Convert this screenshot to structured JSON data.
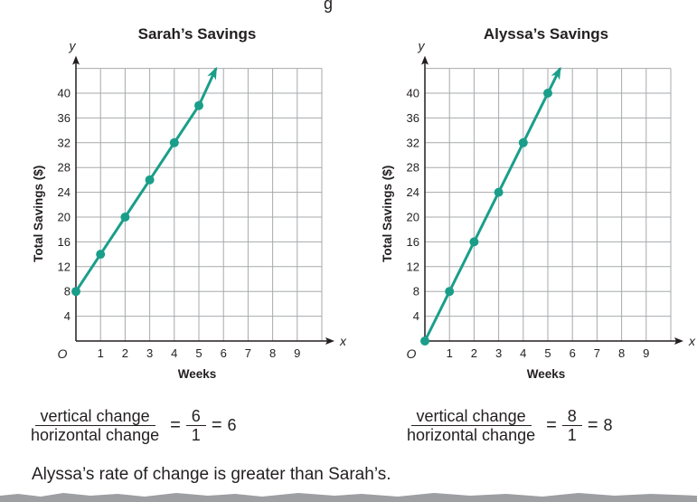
{
  "header_fragment": "g",
  "chart_data": [
    {
      "type": "line",
      "title": "Sarah’s Savings",
      "xlabel": "Weeks",
      "ylabel": "Total Savings ($)",
      "x_axis_letter": "x",
      "y_axis_letter": "y",
      "origin_label": "O",
      "xlim": [
        0,
        10
      ],
      "ylim": [
        0,
        44
      ],
      "x_ticks": [
        1,
        2,
        3,
        4,
        5,
        6,
        7,
        8,
        9
      ],
      "y_ticks": [
        4,
        8,
        12,
        16,
        20,
        24,
        28,
        32,
        36,
        40
      ],
      "grid": true,
      "series": [
        {
          "x": [
            0,
            1,
            2,
            3,
            4,
            5
          ],
          "y": [
            8,
            14,
            20,
            26,
            32,
            38
          ],
          "color": "#1a9e8a",
          "arrow_to": [
            5.7,
            44
          ]
        }
      ]
    },
    {
      "type": "line",
      "title": "Alyssa’s Savings",
      "xlabel": "Weeks",
      "ylabel": "Total Savings ($)",
      "x_axis_letter": "x",
      "y_axis_letter": "y",
      "origin_label": "O",
      "xlim": [
        0,
        10
      ],
      "ylim": [
        0,
        44
      ],
      "x_ticks": [
        1,
        2,
        3,
        4,
        5,
        6,
        7,
        8,
        9
      ],
      "y_ticks": [
        4,
        8,
        12,
        16,
        20,
        24,
        28,
        32,
        36,
        40
      ],
      "grid": true,
      "series": [
        {
          "x": [
            0,
            1,
            2,
            3,
            4,
            5
          ],
          "y": [
            0,
            8,
            16,
            24,
            32,
            40
          ],
          "color": "#1a9e8a",
          "arrow_to": [
            5.5,
            44
          ]
        }
      ]
    }
  ],
  "sarah_rate": {
    "numerator": "vertical change",
    "denominator": "horizontal change",
    "eq1": "=",
    "num2": "6",
    "den2": "1",
    "eq2": "=",
    "result": "6"
  },
  "alyssa_rate": {
    "numerator": "vertical change",
    "denominator": "horizontal change",
    "eq1": "=",
    "num2": "8",
    "den2": "1",
    "eq2": "=",
    "result": "8"
  },
  "conclusion": "Alyssa’s rate of change is greater than Sarah’s."
}
